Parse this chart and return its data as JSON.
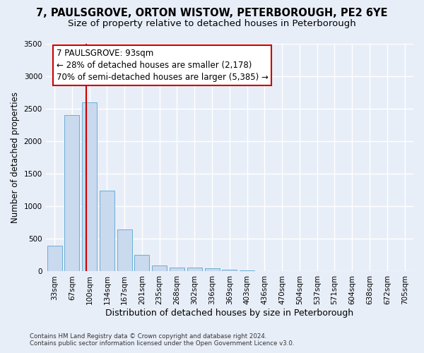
{
  "title": "7, PAULSGROVE, ORTON WISTOW, PETERBOROUGH, PE2 6YE",
  "subtitle": "Size of property relative to detached houses in Peterborough",
  "xlabel": "Distribution of detached houses by size in Peterborough",
  "ylabel": "Number of detached properties",
  "footer_line1": "Contains HM Land Registry data © Crown copyright and database right 2024.",
  "footer_line2": "Contains public sector information licensed under the Open Government Licence v3.0.",
  "categories": [
    "33sqm",
    "67sqm",
    "100sqm",
    "134sqm",
    "167sqm",
    "201sqm",
    "235sqm",
    "268sqm",
    "302sqm",
    "336sqm",
    "369sqm",
    "403sqm",
    "436sqm",
    "470sqm",
    "504sqm",
    "537sqm",
    "571sqm",
    "604sqm",
    "638sqm",
    "672sqm",
    "705sqm"
  ],
  "values": [
    390,
    2400,
    2600,
    1240,
    640,
    255,
    95,
    60,
    55,
    45,
    28,
    18,
    0,
    0,
    0,
    0,
    0,
    0,
    0,
    0,
    0
  ],
  "bar_color": "#c9d9ee",
  "bar_edge_color": "#6baed6",
  "vline_color": "#cc0000",
  "vline_pos": 1.82,
  "annotation_text": "7 PAULSGROVE: 93sqm\n← 28% of detached houses are smaller (2,178)\n70% of semi-detached houses are larger (5,385) →",
  "annotation_box_edge_color": "#cc0000",
  "ylim": [
    0,
    3500
  ],
  "yticks": [
    0,
    500,
    1000,
    1500,
    2000,
    2500,
    3000,
    3500
  ],
  "bg_color": "#e8eef8",
  "grid_color": "#ffffff",
  "title_fontsize": 10.5,
  "subtitle_fontsize": 9.5,
  "xlabel_fontsize": 9,
  "ylabel_fontsize": 8.5,
  "tick_fontsize": 7.5,
  "annotation_fontsize": 8.5
}
